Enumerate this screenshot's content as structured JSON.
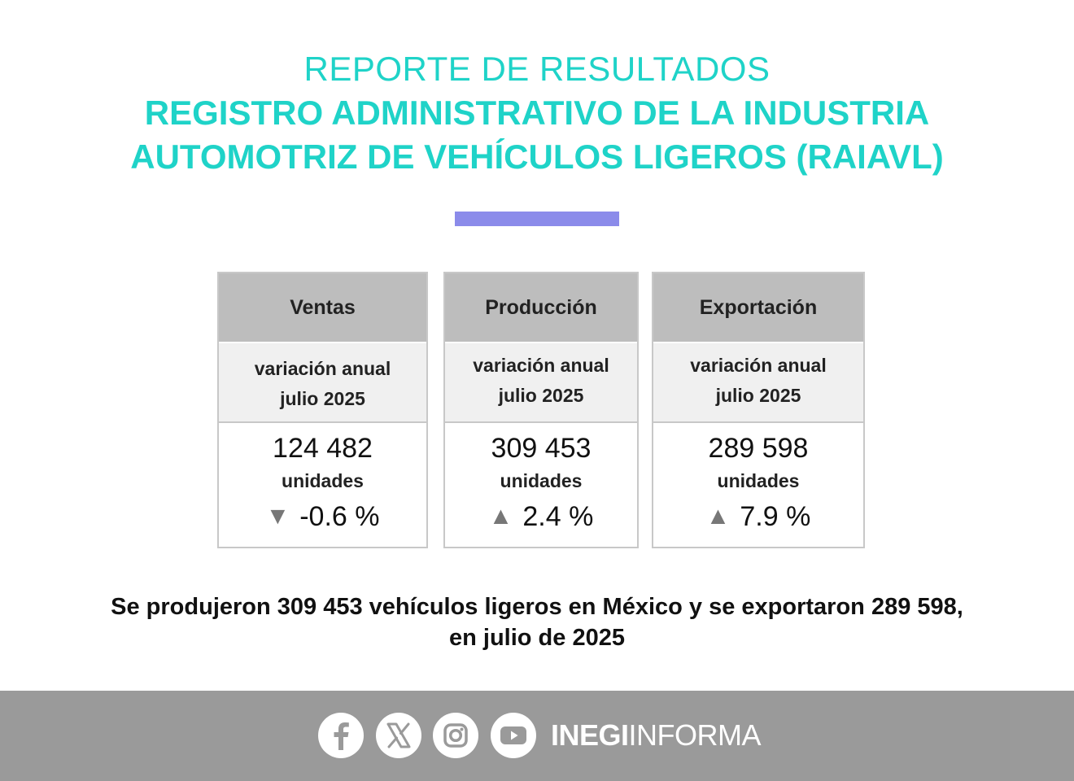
{
  "title": {
    "line1": "REPORTE DE RESULTADOS",
    "line2": "REGISTRO ADMINISTRATIVO DE LA INDUSTRIA",
    "line3": "AUTOMOTRIZ DE VEHÍCULOS LIGEROS (RAIAVL)"
  },
  "colors": {
    "title": "#1fd3c8",
    "divider": "#8b8bea",
    "header_bg": "#bdbdbd",
    "sub_bg": "#f0f0f0",
    "footer_bg": "#9a9a9a",
    "arrow": "#777777"
  },
  "cards": [
    {
      "header": "Ventas",
      "sub_line1": "variación anual",
      "sub_line2": "julio 2025",
      "value": "124 482",
      "units": "unidades",
      "arrow": "▼",
      "change": "-0.6 %"
    },
    {
      "header": "Producción",
      "sub_line1": "variación anual",
      "sub_line2": "julio 2025",
      "value": "309 453",
      "units": "unidades",
      "arrow": "▲",
      "change": "2.4 %"
    },
    {
      "header": "Exportación",
      "sub_line1": "variación anual",
      "sub_line2": "julio 2025",
      "value": "289 598",
      "units": "unidades",
      "arrow": "▲",
      "change": "7.9 %"
    }
  ],
  "summary": {
    "line1": "Se produjeron 309 453 vehículos ligeros en México y se exportaron 289 598,",
    "line2": "en julio de 2025"
  },
  "footer": {
    "icons": [
      "facebook-icon",
      "x-icon",
      "instagram-icon",
      "youtube-icon"
    ],
    "brand_bold": "INEGI",
    "brand_light": "INFORMA"
  }
}
